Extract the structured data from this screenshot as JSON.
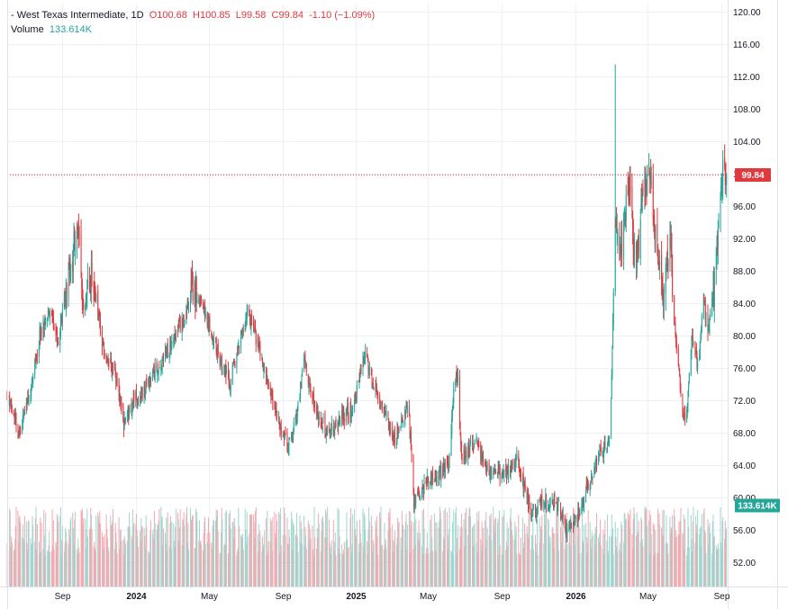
{
  "legend": {
    "symbol": "- West Texas Intermediate",
    "interval": "1D",
    "open": "O100.68",
    "high": "H100.85",
    "low": "L99.58",
    "close": "C99.84",
    "change": "-1.10 (−1.09%)",
    "volume_label": "Volume",
    "volume_value": "133.614K"
  },
  "price_badge": "99.84",
  "volume_badge": "133.614K",
  "colors": {
    "up": "#26a69a",
    "down": "#e0393e",
    "volume_up": "#9fd6cf",
    "volume_down": "#f3a9b0",
    "grid": "#eef0f3",
    "badge_price": "#e0393e",
    "badge_volume": "#26a69a"
  },
  "chart_data": {
    "type": "candlestick",
    "title": "West Texas Intermediate",
    "interval": "1D",
    "ylim": [
      49,
      121
    ],
    "y_ticks": [
      52,
      56,
      60,
      64,
      68,
      72,
      76,
      80,
      84,
      88,
      92,
      96,
      100,
      104,
      108,
      112,
      116,
      120
    ],
    "y_tick_labels": [
      "52.00",
      "56.00",
      "60.00",
      "64.00",
      "68.00",
      "72.00",
      "76.00",
      "80.00",
      "84.00",
      "88.00",
      "92.00",
      "96.00",
      "100.00",
      "104.00",
      "108.00",
      "112.00",
      "116.00",
      "120.00"
    ],
    "x_ticks": [
      {
        "date": "2023-09-01",
        "label": "Sep"
      },
      {
        "date": "2024-01-01",
        "label": "2024"
      },
      {
        "date": "2024-05-01",
        "label": "May"
      },
      {
        "date": "2024-09-01",
        "label": "Sep"
      },
      {
        "date": "2025-01-01",
        "label": "2025"
      },
      {
        "date": "2025-05-01",
        "label": "May"
      },
      {
        "date": "2025-09-01",
        "label": "Sep"
      },
      {
        "date": "2026-01-01",
        "label": "2026"
      },
      {
        "date": "2026-05-01",
        "label": "May"
      },
      {
        "date": "2026-09-01",
        "label": "Sep"
      }
    ],
    "x_range": [
      "2023-06-01",
      "2026-09-12"
    ],
    "close_path": [
      [
        "2023-06-01",
        73
      ],
      [
        "2023-06-20",
        68
      ],
      [
        "2023-07-10",
        73
      ],
      [
        "2023-07-25",
        80
      ],
      [
        "2023-08-10",
        83
      ],
      [
        "2023-08-25",
        79
      ],
      [
        "2023-09-10",
        87
      ],
      [
        "2023-09-27",
        93
      ],
      [
        "2023-10-06",
        83
      ],
      [
        "2023-10-20",
        88
      ],
      [
        "2023-11-10",
        77
      ],
      [
        "2023-11-25",
        76
      ],
      [
        "2023-12-12",
        69
      ],
      [
        "2023-12-28",
        72
      ],
      [
        "2024-01-15",
        73
      ],
      [
        "2024-02-05",
        76
      ],
      [
        "2024-03-01",
        79
      ],
      [
        "2024-03-20",
        82
      ],
      [
        "2024-04-05",
        86
      ],
      [
        "2024-04-25",
        83
      ],
      [
        "2024-05-15",
        78
      ],
      [
        "2024-06-05",
        74
      ],
      [
        "2024-06-25",
        80
      ],
      [
        "2024-07-05",
        83
      ],
      [
        "2024-07-25",
        78
      ],
      [
        "2024-08-10",
        73
      ],
      [
        "2024-09-10",
        66
      ],
      [
        "2024-09-25",
        70
      ],
      [
        "2024-10-07",
        77
      ],
      [
        "2024-10-25",
        71
      ],
      [
        "2024-11-15",
        68
      ],
      [
        "2024-12-10",
        70
      ],
      [
        "2024-12-28",
        71
      ],
      [
        "2025-01-15",
        78
      ],
      [
        "2025-02-05",
        73
      ],
      [
        "2025-03-05",
        67
      ],
      [
        "2025-03-30",
        71
      ],
      [
        "2025-04-08",
        59
      ],
      [
        "2025-04-28",
        62
      ],
      [
        "2025-05-20",
        63
      ],
      [
        "2025-06-05",
        64
      ],
      [
        "2025-06-13",
        74
      ],
      [
        "2025-06-20",
        75
      ],
      [
        "2025-06-26",
        65
      ],
      [
        "2025-07-20",
        67
      ],
      [
        "2025-08-10",
        63
      ],
      [
        "2025-09-05",
        63
      ],
      [
        "2025-09-25",
        65
      ],
      [
        "2025-10-10",
        61
      ],
      [
        "2025-10-20",
        58
      ],
      [
        "2025-11-10",
        60
      ],
      [
        "2025-12-05",
        59
      ],
      [
        "2025-12-18",
        56
      ],
      [
        "2026-01-06",
        58
      ],
      [
        "2026-01-25",
        62
      ],
      [
        "2026-02-10",
        65
      ],
      [
        "2026-02-28",
        67
      ],
      [
        "2026-03-04",
        78
      ],
      [
        "2026-03-09",
        95
      ],
      [
        "2026-03-18",
        90
      ],
      [
        "2026-04-01",
        100
      ],
      [
        "2026-04-12",
        88
      ],
      [
        "2026-04-25",
        98
      ],
      [
        "2026-05-05",
        100
      ],
      [
        "2026-05-15",
        92
      ],
      [
        "2026-05-28",
        86
      ],
      [
        "2026-06-08",
        92
      ],
      [
        "2026-06-15",
        82
      ],
      [
        "2026-06-22",
        76
      ],
      [
        "2026-06-30",
        70
      ],
      [
        "2026-07-06",
        71
      ],
      [
        "2026-07-14",
        80
      ],
      [
        "2026-07-25",
        76
      ],
      [
        "2026-08-02",
        85
      ],
      [
        "2026-08-10",
        80
      ],
      [
        "2026-08-20",
        86
      ],
      [
        "2026-08-28",
        93
      ],
      [
        "2026-09-04",
        100
      ],
      [
        "2026-09-10",
        99.84
      ]
    ],
    "spikes": [
      {
        "date": "2026-03-09",
        "high": 113.5
      },
      {
        "date": "2026-04-18",
        "low": 79
      },
      {
        "date": "2026-05-10",
        "high": 107
      }
    ],
    "last_close": 99.84,
    "volume": {
      "ylim": [
        0,
        145
      ],
      "last": "133.614K"
    }
  }
}
